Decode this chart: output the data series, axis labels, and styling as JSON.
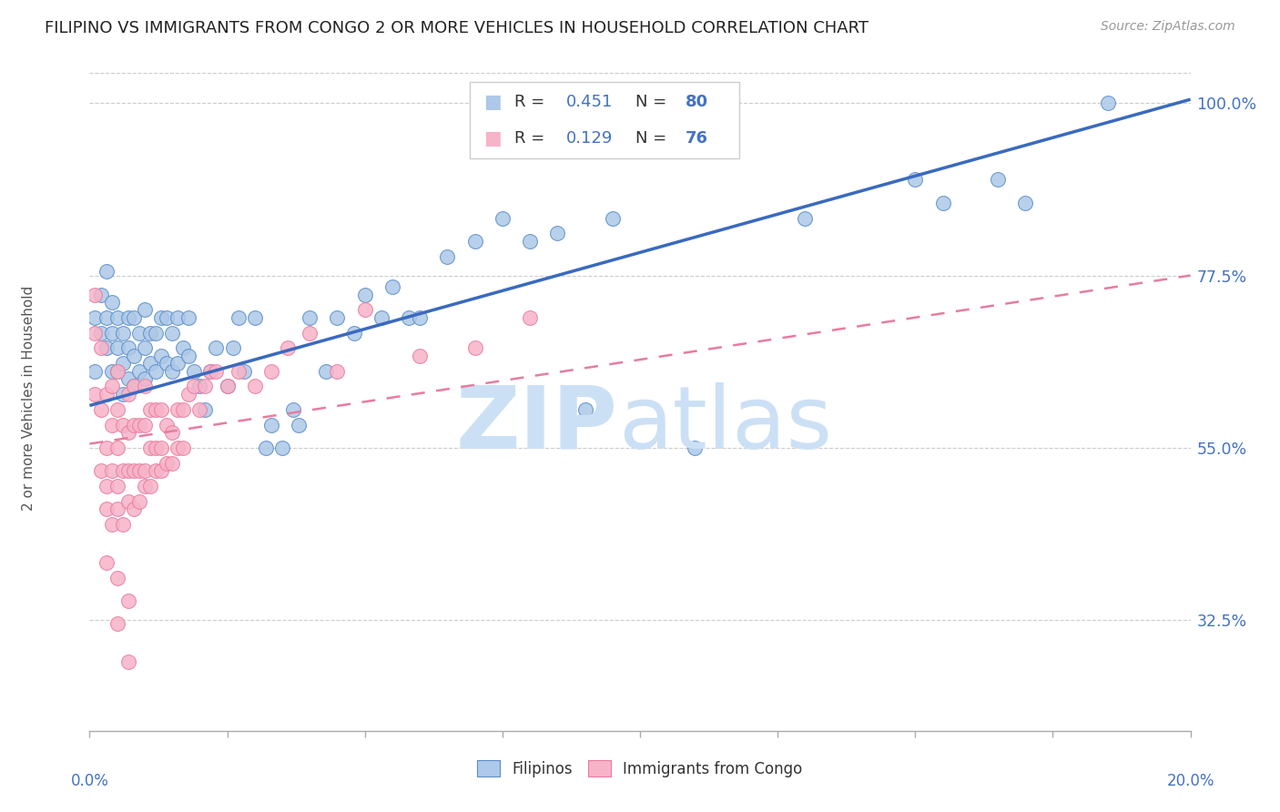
{
  "title": "FILIPINO VS IMMIGRANTS FROM CONGO 2 OR MORE VEHICLES IN HOUSEHOLD CORRELATION CHART",
  "source": "Source: ZipAtlas.com",
  "ylabel": "2 or more Vehicles in Household",
  "yticks": [
    0.325,
    0.55,
    0.775,
    1.0
  ],
  "ytick_labels": [
    "32.5%",
    "55.0%",
    "77.5%",
    "100.0%"
  ],
  "xmin": 0.0,
  "xmax": 0.2,
  "ymin": 0.18,
  "ymax": 1.05,
  "r_filipino": 0.451,
  "n_filipino": 80,
  "r_congo": 0.129,
  "n_congo": 76,
  "color_filipino": "#adc8e8",
  "color_congo": "#f7b3c8",
  "color_edge_filipino": "#5b8dc8",
  "color_edge_congo": "#e87ca0",
  "color_line_filipino": "#3a6abf",
  "color_line_congo": "#e87ca0",
  "color_text_blue": "#4472c4",
  "watermark_color": "#cce0f5",
  "legend_label_1": "Filipinos",
  "legend_label_2": "Immigrants from Congo",
  "blue_line_y0": 0.605,
  "blue_line_y1": 1.005,
  "pink_line_y0": 0.555,
  "pink_line_y1": 0.775,
  "filipino_x": [
    0.001,
    0.001,
    0.002,
    0.002,
    0.003,
    0.003,
    0.003,
    0.004,
    0.004,
    0.004,
    0.005,
    0.005,
    0.005,
    0.006,
    0.006,
    0.006,
    0.007,
    0.007,
    0.007,
    0.008,
    0.008,
    0.008,
    0.009,
    0.009,
    0.01,
    0.01,
    0.01,
    0.011,
    0.011,
    0.012,
    0.012,
    0.013,
    0.013,
    0.014,
    0.014,
    0.015,
    0.015,
    0.016,
    0.016,
    0.017,
    0.018,
    0.018,
    0.019,
    0.02,
    0.021,
    0.022,
    0.023,
    0.025,
    0.026,
    0.027,
    0.028,
    0.03,
    0.032,
    0.033,
    0.035,
    0.037,
    0.038,
    0.04,
    0.043,
    0.045,
    0.048,
    0.05,
    0.053,
    0.055,
    0.058,
    0.06,
    0.065,
    0.07,
    0.075,
    0.08,
    0.085,
    0.09,
    0.095,
    0.11,
    0.13,
    0.15,
    0.155,
    0.165,
    0.17,
    0.185
  ],
  "filipino_y": [
    0.65,
    0.72,
    0.7,
    0.75,
    0.68,
    0.72,
    0.78,
    0.65,
    0.7,
    0.74,
    0.65,
    0.68,
    0.72,
    0.62,
    0.66,
    0.7,
    0.64,
    0.68,
    0.72,
    0.63,
    0.67,
    0.72,
    0.65,
    0.7,
    0.64,
    0.68,
    0.73,
    0.66,
    0.7,
    0.65,
    0.7,
    0.67,
    0.72,
    0.66,
    0.72,
    0.65,
    0.7,
    0.66,
    0.72,
    0.68,
    0.67,
    0.72,
    0.65,
    0.63,
    0.6,
    0.65,
    0.68,
    0.63,
    0.68,
    0.72,
    0.65,
    0.72,
    0.55,
    0.58,
    0.55,
    0.6,
    0.58,
    0.72,
    0.65,
    0.72,
    0.7,
    0.75,
    0.72,
    0.76,
    0.72,
    0.72,
    0.8,
    0.82,
    0.85,
    0.82,
    0.83,
    0.6,
    0.85,
    0.55,
    0.85,
    0.9,
    0.87,
    0.9,
    0.87,
    1.0
  ],
  "congo_x": [
    0.001,
    0.001,
    0.001,
    0.002,
    0.002,
    0.002,
    0.003,
    0.003,
    0.003,
    0.004,
    0.004,
    0.004,
    0.005,
    0.005,
    0.005,
    0.005,
    0.006,
    0.006,
    0.007,
    0.007,
    0.007,
    0.008,
    0.008,
    0.008,
    0.009,
    0.009,
    0.01,
    0.01,
    0.01,
    0.011,
    0.011,
    0.012,
    0.012,
    0.013,
    0.013,
    0.014,
    0.015,
    0.016,
    0.017,
    0.018,
    0.019,
    0.02,
    0.021,
    0.022,
    0.023,
    0.025,
    0.027,
    0.03,
    0.033,
    0.036,
    0.04,
    0.045,
    0.05,
    0.06,
    0.07,
    0.08,
    0.003,
    0.004,
    0.005,
    0.006,
    0.007,
    0.008,
    0.009,
    0.01,
    0.011,
    0.012,
    0.013,
    0.014,
    0.015,
    0.016,
    0.017,
    0.003,
    0.005,
    0.007,
    0.005,
    0.007
  ],
  "congo_y": [
    0.7,
    0.62,
    0.75,
    0.52,
    0.6,
    0.68,
    0.5,
    0.55,
    0.62,
    0.52,
    0.58,
    0.63,
    0.5,
    0.55,
    0.6,
    0.65,
    0.52,
    0.58,
    0.52,
    0.57,
    0.62,
    0.52,
    0.58,
    0.63,
    0.52,
    0.58,
    0.52,
    0.58,
    0.63,
    0.55,
    0.6,
    0.55,
    0.6,
    0.55,
    0.6,
    0.58,
    0.57,
    0.6,
    0.6,
    0.62,
    0.63,
    0.6,
    0.63,
    0.65,
    0.65,
    0.63,
    0.65,
    0.63,
    0.65,
    0.68,
    0.7,
    0.65,
    0.73,
    0.67,
    0.68,
    0.72,
    0.47,
    0.45,
    0.47,
    0.45,
    0.48,
    0.47,
    0.48,
    0.5,
    0.5,
    0.52,
    0.52,
    0.53,
    0.53,
    0.55,
    0.55,
    0.4,
    0.38,
    0.35,
    0.32,
    0.27
  ]
}
